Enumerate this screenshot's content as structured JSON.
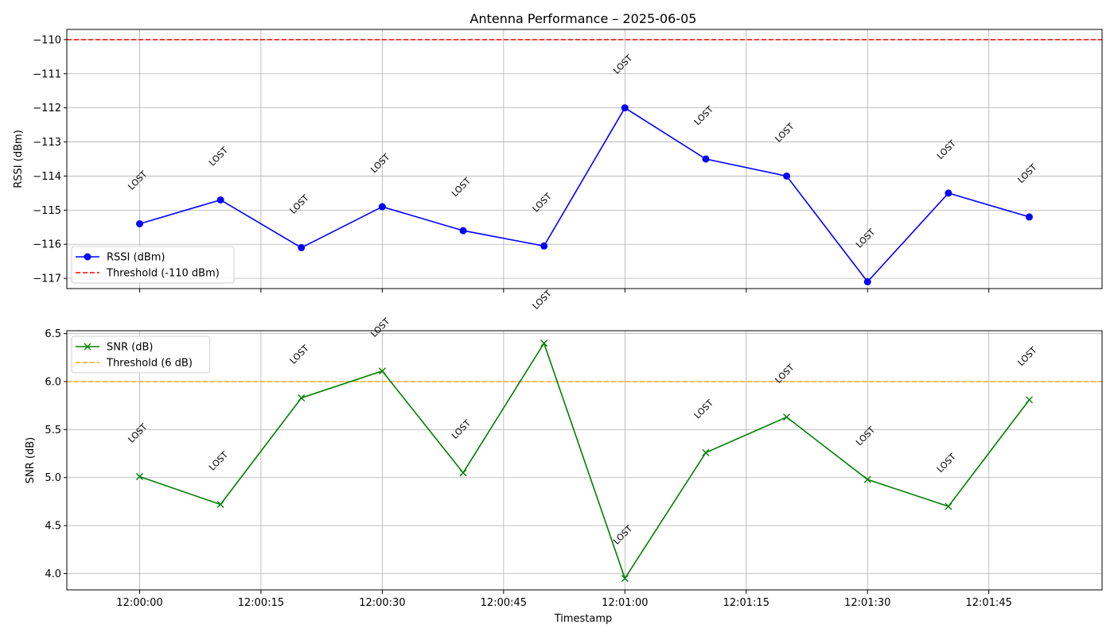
{
  "chart_data": {
    "type": "line",
    "title": "Antenna Performance – 2025-06-05",
    "xlabel": "Timestamp",
    "x_ticks": [
      "12:00:00",
      "12:00:15",
      "12:00:30",
      "12:00:45",
      "12:01:00",
      "12:01:15",
      "12:01:30",
      "12:01:45"
    ],
    "x": [
      "12:00:00",
      "12:00:10",
      "12:00:20",
      "12:00:30",
      "12:00:40",
      "12:00:50",
      "12:01:00",
      "12:01:10",
      "12:01:20",
      "12:01:30",
      "12:01:40",
      "12:01:50"
    ],
    "annotation_text": "LOST",
    "grid": true,
    "panels": [
      {
        "ylabel": "RSSI (dBm)",
        "ylim": [
          -117.3,
          -109.7
        ],
        "y_ticks": [
          "−110",
          "−111",
          "−112",
          "−113",
          "−114",
          "−115",
          "−116",
          "−117"
        ],
        "legend_position": "lower-left",
        "series": [
          {
            "name": "RSSI (dBm)",
            "color": "#0000ff",
            "marker": "circle",
            "values": [
              -115.4,
              -114.7,
              -116.1,
              -114.9,
              -115.6,
              -116.05,
              -112.0,
              -113.5,
              -114.0,
              -117.1,
              -114.5,
              -115.2
            ]
          }
        ],
        "threshold": {
          "name": "Threshold (-110 dBm)",
          "value": -110,
          "color": "#ff0000"
        }
      },
      {
        "ylabel": "SNR (dB)",
        "ylim": [
          3.83,
          6.53
        ],
        "y_ticks": [
          "4.0",
          "4.5",
          "5.0",
          "5.5",
          "6.0",
          "6.5"
        ],
        "legend_position": "upper-left",
        "series": [
          {
            "name": "SNR (dB)",
            "color": "#008000",
            "marker": "x",
            "values": [
              5.01,
              4.72,
              5.83,
              6.11,
              5.05,
              6.4,
              3.95,
              5.26,
              5.63,
              4.98,
              4.7,
              5.81
            ]
          }
        ],
        "threshold": {
          "name": "Threshold (6 dB)",
          "value": 6.0,
          "color": "#ffa500"
        }
      }
    ]
  }
}
